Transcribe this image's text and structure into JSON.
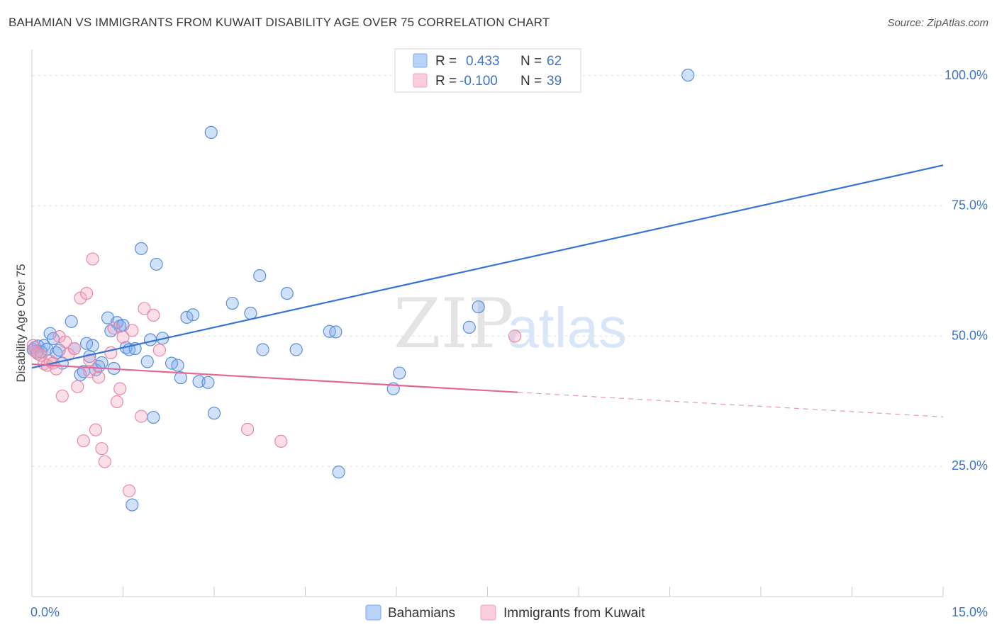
{
  "title": "BAHAMIAN VS IMMIGRANTS FROM KUWAIT DISABILITY AGE OVER 75 CORRELATION CHART",
  "source": "Source: ZipAtlas.com",
  "watermark": {
    "zip": "ZIP",
    "atlas": "atlas"
  },
  "chart_data": {
    "type": "scatter",
    "ylabel": "Disability Age Over 75",
    "xlim": [
      0,
      15
    ],
    "ylim": [
      0,
      105
    ],
    "x_tick_labels": [
      {
        "value": 0,
        "label": "0.0%"
      },
      {
        "value": 15,
        "label": "15.0%"
      }
    ],
    "y_tick_labels": [
      {
        "value": 25,
        "label": "25.0%"
      },
      {
        "value": 50,
        "label": "50.0%"
      },
      {
        "value": 75,
        "label": "75.0%"
      },
      {
        "value": 100,
        "label": "100.0%"
      }
    ],
    "grid": true,
    "legend_position": "top-center",
    "series": [
      {
        "name": "Bahamians",
        "color": "#7aaaf0",
        "stroke": "#5b8fd8",
        "line_color": "#3575d0",
        "R_label": "R =",
        "R_value": "0.433",
        "N_label": "N =",
        "N_value": "62",
        "trend": {
          "x0": 0,
          "y0": 43.9,
          "x1": 15,
          "y1": 82.8,
          "dashed_from": null
        },
        "points": [
          [
            0.02,
            47.4
          ],
          [
            0.05,
            47.8
          ],
          [
            0.08,
            46.9
          ],
          [
            0.1,
            48.1
          ],
          [
            0.15,
            47.0
          ],
          [
            0.2,
            48.2
          ],
          [
            0.25,
            47.5
          ],
          [
            0.3,
            50.5
          ],
          [
            0.35,
            49.5
          ],
          [
            0.4,
            46.8
          ],
          [
            0.45,
            47.3
          ],
          [
            0.5,
            44.8
          ],
          [
            0.65,
            52.8
          ],
          [
            0.7,
            47.6
          ],
          [
            0.8,
            42.6
          ],
          [
            0.85,
            43.2
          ],
          [
            0.9,
            48.6
          ],
          [
            0.95,
            46.1
          ],
          [
            1.0,
            48.2
          ],
          [
            1.05,
            43.5
          ],
          [
            1.1,
            44.2
          ],
          [
            1.15,
            44.9
          ],
          [
            1.25,
            53.5
          ],
          [
            1.3,
            51.0
          ],
          [
            1.35,
            43.8
          ],
          [
            1.4,
            52.6
          ],
          [
            1.45,
            51.9
          ],
          [
            1.5,
            52.1
          ],
          [
            1.55,
            47.8
          ],
          [
            1.6,
            47.4
          ],
          [
            1.7,
            47.6
          ],
          [
            1.8,
            66.8
          ],
          [
            1.9,
            45.1
          ],
          [
            1.95,
            49.3
          ],
          [
            2.0,
            34.4
          ],
          [
            2.05,
            63.8
          ],
          [
            2.15,
            49.6
          ],
          [
            2.3,
            44.8
          ],
          [
            2.4,
            44.4
          ],
          [
            2.45,
            42.0
          ],
          [
            2.55,
            53.6
          ],
          [
            2.65,
            54.1
          ],
          [
            2.75,
            41.3
          ],
          [
            2.9,
            41.1
          ],
          [
            2.95,
            89.1
          ],
          [
            3.0,
            35.2
          ],
          [
            3.3,
            56.3
          ],
          [
            3.6,
            54.4
          ],
          [
            3.75,
            61.6
          ],
          [
            3.8,
            47.4
          ],
          [
            4.2,
            58.2
          ],
          [
            4.35,
            47.4
          ],
          [
            4.9,
            50.9
          ],
          [
            5.0,
            50.8
          ],
          [
            5.05,
            23.9
          ],
          [
            5.95,
            39.9
          ],
          [
            6.05,
            42.9
          ],
          [
            7.2,
            51.7
          ],
          [
            7.35,
            55.6
          ],
          [
            7.5,
            100.1
          ],
          [
            10.8,
            100.1
          ],
          [
            1.65,
            17.6
          ]
        ]
      },
      {
        "name": "Immigrants from Kuwait",
        "color": "#f4a3bc",
        "stroke": "#e889a8",
        "line_color": "#e06a92",
        "R_label": "R =",
        "R_value": "-0.100",
        "N_label": "N =",
        "N_value": "39",
        "trend": {
          "x0": 0,
          "y0": 44.6,
          "x1": 15,
          "y1": 34.5,
          "dashed_from": 8.0
        },
        "points": [
          [
            0.02,
            48.2
          ],
          [
            0.05,
            47.1
          ],
          [
            0.1,
            46.6
          ],
          [
            0.15,
            46.3
          ],
          [
            0.2,
            44.7
          ],
          [
            0.25,
            44.4
          ],
          [
            0.3,
            45.2
          ],
          [
            0.35,
            44.8
          ],
          [
            0.4,
            43.7
          ],
          [
            0.45,
            49.9
          ],
          [
            0.5,
            38.5
          ],
          [
            0.55,
            48.9
          ],
          [
            0.6,
            46.5
          ],
          [
            0.7,
            47.6
          ],
          [
            0.75,
            40.3
          ],
          [
            0.8,
            57.3
          ],
          [
            0.85,
            29.9
          ],
          [
            0.9,
            58.2
          ],
          [
            0.95,
            43.2
          ],
          [
            1.0,
            64.8
          ],
          [
            1.05,
            32.0
          ],
          [
            1.1,
            42.1
          ],
          [
            1.15,
            28.4
          ],
          [
            1.2,
            25.9
          ],
          [
            1.3,
            46.8
          ],
          [
            1.35,
            51.5
          ],
          [
            1.4,
            37.4
          ],
          [
            1.45,
            39.9
          ],
          [
            1.5,
            49.8
          ],
          [
            1.6,
            20.3
          ],
          [
            1.65,
            51.1
          ],
          [
            1.8,
            34.6
          ],
          [
            1.85,
            55.3
          ],
          [
            2.0,
            54.0
          ],
          [
            2.1,
            47.3
          ],
          [
            3.55,
            32.1
          ],
          [
            4.1,
            29.8
          ],
          [
            7.95,
            50.0
          ],
          [
            0.95,
            45.4
          ]
        ]
      }
    ]
  },
  "legend": {
    "items": [
      {
        "label": "Bahamians"
      },
      {
        "label": "Immigrants from Kuwait"
      }
    ]
  }
}
